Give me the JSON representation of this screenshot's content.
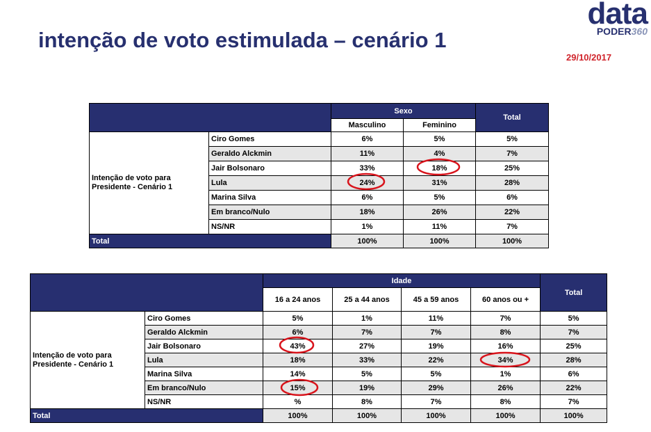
{
  "header": {
    "title": "intenção de voto estimulada – cenário 1",
    "date": "29/10/2017"
  },
  "logo": {
    "top": "data",
    "bottom": "PODER",
    "number": "360"
  },
  "tables": [
    {
      "group": "Sexo",
      "columns": [
        "Masculino",
        "Feminino"
      ],
      "total": "Total",
      "row_group": "Intenção de voto para Presidente - Cenário 1",
      "rows": [
        {
          "name": "Ciro Gomes",
          "values": [
            "6%",
            "5%",
            "5%"
          ]
        },
        {
          "name": "Geraldo Alckmin",
          "values": [
            "11%",
            "4%",
            "7%"
          ]
        },
        {
          "name": "Jair Bolsonaro",
          "values": [
            "33%",
            "18%",
            "25%"
          ]
        },
        {
          "name": "Lula",
          "values": [
            "24%",
            "31%",
            "28%"
          ]
        },
        {
          "name": "Marina Silva",
          "values": [
            "6%",
            "5%",
            "6%"
          ]
        },
        {
          "name": "Em branco/Nulo",
          "values": [
            "18%",
            "26%",
            "22%"
          ]
        },
        {
          "name": "NS/NR",
          "values": [
            "1%",
            "11%",
            "7%"
          ]
        }
      ],
      "total_row": {
        "name": "Total",
        "values": [
          "100%",
          "100%",
          "100%"
        ]
      }
    },
    {
      "group": "Idade",
      "columns": [
        "16 a 24 anos",
        "25 a 44 anos",
        "45 a 59 anos",
        "60 anos ou +"
      ],
      "total": "Total",
      "row_group": "Intenção de voto para Presidente - Cenário 1",
      "rows": [
        {
          "name": "Ciro Gomes",
          "values": [
            "5%",
            "1%",
            "11%",
            "7%",
            "5%"
          ]
        },
        {
          "name": "Geraldo Alckmin",
          "values": [
            "6%",
            "7%",
            "7%",
            "8%",
            "7%"
          ]
        },
        {
          "name": "Jair Bolsonaro",
          "values": [
            "43%",
            "27%",
            "19%",
            "16%",
            "25%"
          ]
        },
        {
          "name": "Lula",
          "values": [
            "18%",
            "33%",
            "22%",
            "34%",
            "28%"
          ]
        },
        {
          "name": "Marina Silva",
          "values": [
            "14%",
            "5%",
            "5%",
            "1%",
            "6%"
          ]
        },
        {
          "name": "Em branco/Nulo",
          "values": [
            "15%",
            "19%",
            "29%",
            "26%",
            "22%"
          ]
        },
        {
          "name": "NS/NR",
          "values": [
            "%",
            "8%",
            "7%",
            "8%",
            "7%"
          ]
        }
      ],
      "total_row": {
        "name": "Total",
        "values": [
          "100%",
          "100%",
          "100%",
          "100%",
          "100%"
        ]
      }
    }
  ]
}
